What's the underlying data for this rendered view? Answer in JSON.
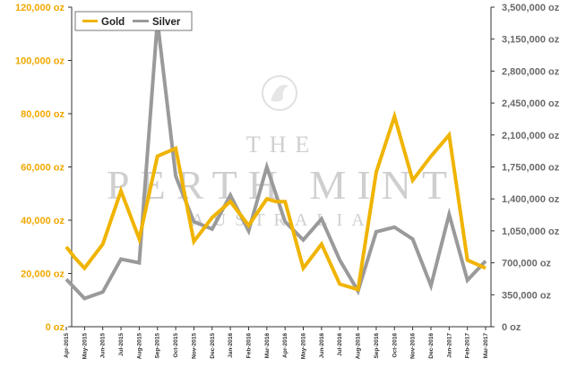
{
  "colors": {
    "gold": "#f0b400",
    "silver": "#9a9a9a",
    "left_axis_text": "#f0a800",
    "right_axis_text": "#6a6a6a",
    "axis_line": "#333333",
    "watermark": "#d4d4d4"
  },
  "watermark": {
    "line1": "THE",
    "line2": "PERTH MINT",
    "line3": "AUSTRALIA"
  },
  "chart_data": {
    "type": "line",
    "title": "",
    "xlabel": "",
    "ylabel": "",
    "legend_position": "top-left",
    "grid": false,
    "categories": [
      "Apr-2015",
      "May-2015",
      "Jun-2015",
      "Jul-2015",
      "Aug-2015",
      "Sep-2015",
      "Oct-2015",
      "Nov-2015",
      "Dec-2015",
      "Jan-2016",
      "Feb-2016",
      "Mar-2016",
      "Apr-2016",
      "May-2016",
      "Jun-2016",
      "Jul-2016",
      "Aug-2016",
      "Sep-2016",
      "Oct-2016",
      "Nov-2016",
      "Dec-2016",
      "Jan-2017",
      "Feb-2017",
      "Mar-2017"
    ],
    "y_left": {
      "ticks": [
        "0 oz",
        "20,000 oz",
        "40,000 oz",
        "60,000 oz",
        "80,000 oz",
        "100,000 oz",
        "120,000 oz"
      ],
      "ylim": [
        0,
        120000
      ]
    },
    "y_right": {
      "ticks": [
        "0 oz",
        "350,000 oz",
        "700,000 oz",
        "1,050,000 oz",
        "1,400,000 oz",
        "1,750,000 oz",
        "2,100,000 oz",
        "2,450,000 oz",
        "2,800,000 oz",
        "3,150,000 oz",
        "3,500,000 oz"
      ],
      "ylim": [
        0,
        3500000
      ]
    },
    "x_tick_labels": [
      "Apr-2015",
      "May-2015",
      "Jun-2015",
      "Jul-2015",
      "Aug-2015",
      "Sep-2015",
      "Oct-2015",
      "Nov-2015",
      "Dec-2015",
      "Jan-2016",
      "Feb-2016",
      "Mar-2016",
      "Apr-2016",
      "May-2016",
      "Jun-2016",
      "Jul-2016",
      "Aug-2016",
      "Sep-2016",
      "Oct-2016",
      "Nov-2016",
      "Dec-2016",
      "Jan-2017",
      "Feb-2017",
      "Mar-2017"
    ],
    "series": [
      {
        "name": "Gold",
        "axis": "left",
        "x": [
          "Apr-2015",
          "Apr-2015",
          "May-2015",
          "Jun-2015",
          "Jul-2015",
          "Aug-2015",
          "Sep-2015",
          "Oct-2015",
          "Nov-2015",
          "Dec-2015",
          "Jan-2016",
          "Feb-2016",
          "Mar-2016",
          "Apr-2016",
          "Apr-2016",
          "May-2016",
          "Jun-2016",
          "Jul-2016",
          "Aug-2016",
          "Sep-2016",
          "Oct-2016",
          "Nov-2016",
          "Dec-2016",
          "Jan-2017",
          "Feb-2017",
          "Mar-2017"
        ],
        "values": [
          30000,
          26000,
          22000,
          31000,
          51000,
          33000,
          64000,
          67000,
          32000,
          41000,
          47000,
          38000,
          48000,
          47000,
          47000,
          22000,
          31000,
          16000,
          14000,
          58000,
          79000,
          55000,
          64000,
          72000,
          25000,
          22000
        ]
      },
      {
        "name": "Silver",
        "axis": "right",
        "x": [
          "Apr-2015",
          "May-2015",
          "Jun-2015",
          "Jul-2015",
          "Aug-2015",
          "Sep-2015",
          "Oct-2015",
          "Nov-2015",
          "Dec-2015",
          "Jan-2016",
          "Feb-2016",
          "Mar-2016",
          "Apr-2016",
          "May-2016",
          "Jun-2016",
          "Jul-2016",
          "Aug-2016",
          "Sep-2016",
          "Oct-2016",
          "Nov-2016",
          "Dec-2016",
          "Jan-2017",
          "Feb-2017",
          "Mar-2017"
        ],
        "values": [
          520000,
          310000,
          380000,
          740000,
          700000,
          3350000,
          1650000,
          1150000,
          1070000,
          1440000,
          1050000,
          1750000,
          1150000,
          950000,
          1180000,
          730000,
          390000,
          1040000,
          1090000,
          960000,
          450000,
          1230000,
          510000,
          720000
        ]
      }
    ]
  }
}
